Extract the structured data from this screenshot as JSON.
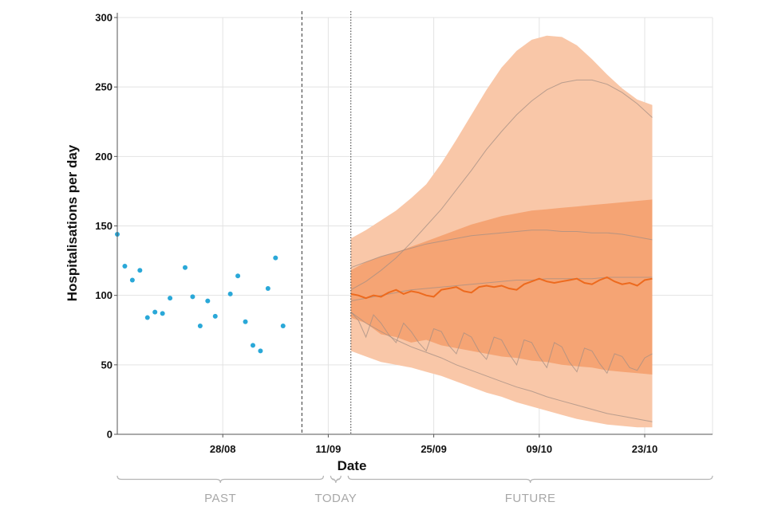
{
  "chart_data": {
    "type": "line",
    "title": "",
    "xlabel": "Date",
    "ylabel": "Hospitalisations per day",
    "ylim": [
      0,
      300
    ],
    "yticks": [
      0,
      50,
      100,
      150,
      200,
      250,
      300
    ],
    "x_range_days": [
      0,
      79
    ],
    "x_ticks": [
      {
        "day": 14,
        "label": "28/08"
      },
      {
        "day": 28,
        "label": "11/09"
      },
      {
        "day": 42,
        "label": "25/09"
      },
      {
        "day": 56,
        "label": "09/10"
      },
      {
        "day": 70,
        "label": "23/10"
      }
    ],
    "periods": [
      {
        "label": "PAST",
        "start_day": 0,
        "end_day": 28
      },
      {
        "label": "TODAY",
        "start_day": 28,
        "end_day": 30
      },
      {
        "label": "FUTURE",
        "start_day": 30,
        "end_day": 79
      }
    ],
    "markers": [
      {
        "name": "last-data-line",
        "day": 24.5,
        "style": "dashed"
      },
      {
        "name": "today-line",
        "day": 31,
        "style": "dotted"
      }
    ],
    "observed": {
      "name": "Observed hospitalisations",
      "color": "#2aa8d8",
      "points": [
        [
          0,
          144
        ],
        [
          1,
          121
        ],
        [
          2,
          111
        ],
        [
          3,
          118
        ],
        [
          4,
          84
        ],
        [
          5,
          88
        ],
        [
          6,
          87
        ],
        [
          7,
          98
        ],
        [
          9,
          120
        ],
        [
          10,
          99
        ],
        [
          11,
          78
        ],
        [
          12,
          96
        ],
        [
          13,
          85
        ],
        [
          15,
          101
        ],
        [
          16,
          114
        ],
        [
          17,
          81
        ],
        [
          18,
          64
        ],
        [
          19,
          60
        ],
        [
          20,
          105
        ],
        [
          21,
          127
        ],
        [
          22,
          78
        ]
      ]
    },
    "forecast": {
      "color_outer": "#f9c7a8",
      "color_inner": "#f4a06e",
      "color_median": "#ed6a1e",
      "color_scenarios": "#a48f84",
      "outer_band": {
        "x": [
          31,
          33,
          35,
          37,
          39,
          41,
          43,
          45,
          47,
          49,
          51,
          53,
          55,
          57,
          59,
          61,
          63,
          65,
          67,
          69,
          71
        ],
        "upper": [
          141,
          147,
          154,
          161,
          170,
          180,
          195,
          212,
          230,
          248,
          264,
          276,
          284,
          287,
          286,
          280,
          270,
          259,
          249,
          241,
          237
        ],
        "lower": [
          60,
          56,
          52,
          50,
          48,
          45,
          42,
          38,
          34,
          30,
          27,
          23,
          20,
          17,
          14,
          11,
          9,
          7,
          6,
          5,
          5
        ]
      },
      "inner_band": {
        "x": [
          31,
          33,
          35,
          37,
          39,
          41,
          43,
          45,
          47,
          49,
          51,
          53,
          55,
          57,
          59,
          61,
          63,
          65,
          67,
          69,
          71
        ],
        "upper": [
          118,
          124,
          128,
          131,
          135,
          139,
          143,
          147,
          151,
          154,
          157,
          159,
          161,
          162,
          163,
          164,
          165,
          166,
          167,
          168,
          169
        ],
        "lower": [
          84,
          80,
          72,
          70,
          66,
          68,
          64,
          62,
          60,
          58,
          56,
          55,
          53,
          52,
          50,
          49,
          48,
          46,
          45,
          44,
          43
        ]
      },
      "median": {
        "x": [
          31,
          32,
          33,
          34,
          35,
          36,
          37,
          38,
          39,
          40,
          41,
          42,
          43,
          44,
          45,
          46,
          47,
          48,
          49,
          50,
          51,
          52,
          53,
          54,
          55,
          56,
          57,
          58,
          59,
          60,
          61,
          62,
          63,
          64,
          65,
          66,
          67,
          68,
          69,
          70,
          71
        ],
        "y": [
          101,
          100,
          98,
          100,
          99,
          102,
          104,
          101,
          103,
          102,
          100,
          99,
          104,
          105,
          106,
          103,
          102,
          106,
          107,
          106,
          107,
          105,
          104,
          108,
          110,
          112,
          110,
          109,
          110,
          111,
          112,
          109,
          108,
          111,
          113,
          110,
          108,
          109,
          107,
          111,
          112
        ]
      },
      "scenario_lines": [
        {
          "name": "scenario-high",
          "x": [
            31,
            33,
            35,
            37,
            39,
            41,
            43,
            45,
            47,
            49,
            51,
            53,
            55,
            57,
            59,
            61,
            63,
            65,
            67,
            69,
            71
          ],
          "y": [
            104,
            110,
            118,
            127,
            138,
            150,
            162,
            176,
            190,
            205,
            218,
            230,
            240,
            248,
            253,
            255,
            255,
            252,
            246,
            238,
            228
          ]
        },
        {
          "name": "scenario-upper",
          "x": [
            31,
            33,
            35,
            37,
            39,
            41,
            43,
            45,
            47,
            49,
            51,
            53,
            55,
            57,
            59,
            61,
            63,
            65,
            67,
            69,
            71
          ],
          "y": [
            120,
            124,
            128,
            131,
            134,
            137,
            139,
            141,
            143,
            144,
            145,
            146,
            147,
            147,
            146,
            146,
            145,
            145,
            144,
            142,
            140
          ]
        },
        {
          "name": "scenario-central",
          "x": [
            31,
            33,
            35,
            37,
            39,
            41,
            43,
            45,
            47,
            49,
            51,
            53,
            55,
            57,
            59,
            61,
            63,
            65,
            67,
            69,
            71
          ],
          "y": [
            96,
            98,
            100,
            102,
            104,
            105,
            106,
            107,
            108,
            109,
            110,
            111,
            111,
            112,
            112,
            112,
            112,
            113,
            113,
            113,
            113
          ]
        },
        {
          "name": "scenario-lower",
          "x": [
            31,
            32,
            33,
            34,
            35,
            36,
            37,
            38,
            39,
            40,
            41,
            42,
            43,
            44,
            45,
            46,
            47,
            48,
            49,
            50,
            51,
            52,
            53,
            54,
            55,
            56,
            57,
            58,
            59,
            60,
            61,
            62,
            63,
            64,
            65,
            66,
            67,
            68,
            69,
            70,
            71
          ],
          "y": [
            88,
            82,
            70,
            86,
            80,
            72,
            66,
            80,
            74,
            66,
            60,
            76,
            74,
            64,
            58,
            73,
            70,
            60,
            54,
            70,
            68,
            58,
            50,
            68,
            66,
            56,
            48,
            66,
            63,
            52,
            45,
            62,
            60,
            51,
            44,
            58,
            56,
            48,
            46,
            55,
            58
          ]
        },
        {
          "name": "scenario-low",
          "x": [
            31,
            33,
            35,
            37,
            39,
            41,
            43,
            45,
            47,
            49,
            51,
            53,
            55,
            57,
            59,
            61,
            63,
            65,
            67,
            69,
            71
          ],
          "y": [
            88,
            80,
            74,
            68,
            63,
            59,
            55,
            50,
            46,
            42,
            38,
            34,
            31,
            27,
            24,
            21,
            18,
            15,
            13,
            11,
            9
          ]
        }
      ]
    }
  }
}
